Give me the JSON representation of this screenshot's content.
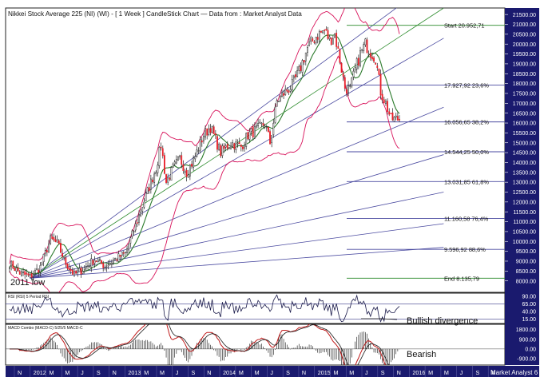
{
  "title": "Nikkei Stock Average 225 (NI) (WI) -  [ 1 Week ] CandleStick Chart — Data from : Market Analyst Data",
  "footer_brand": "Market Analyst 6",
  "colors": {
    "price_bg": "#ffffff",
    "indicator_bg": "#ffffff",
    "frame": "#222222",
    "right_axis_bg": "#1a1a6e",
    "right_axis_text": "#ffffff",
    "bottom_axis_bg": "#1a1a6e",
    "bottom_axis_text": "#ffffff",
    "candle_up": "#ffffff",
    "candle_down": "#e8202a",
    "candle_wick": "#222222",
    "bollinger": "#d8125a",
    "moving_average": "#2a7a2a",
    "fan_lines": "#4a4aa0",
    "start_line": "#2a8a2a",
    "fib_levels": "#4a4aa0",
    "rsi_line": "#1a1a4a",
    "macd_line": "#c01a1a",
    "macd_signal": "#1a1a1a"
  },
  "chart_data": {
    "type": "candlestick",
    "title": "Nikkei Stock Average 225 (NI) (WI) -  [ 1 Week ] CandleStick Chart — Data from : Market Analyst Data",
    "y_ticks": [
      8000,
      8500,
      9000,
      9500,
      10000,
      10500,
      11000,
      11500,
      12000,
      12500,
      13000,
      13500,
      14000,
      14500,
      15000,
      15500,
      16000,
      16500,
      17000,
      17500,
      18000,
      18500,
      19000,
      19500,
      20000,
      20500,
      21000,
      21500
    ],
    "y_tick_labels": [
      "8000.00",
      "8500.00",
      "9000.00",
      "9500.00",
      "10000.00",
      "10500.00",
      "11000.00",
      "11500.00",
      "12000.00",
      "12500.00",
      "13000.00",
      "13500.00",
      "14000.00",
      "14500.00",
      "15000.00",
      "15500.00",
      "16000.00",
      "16500.00",
      "17000.00",
      "17500.00",
      "18000.00",
      "18500.00",
      "19000.00",
      "19500.00",
      "20000.00",
      "20500.00",
      "21000.00",
      "21500.00"
    ],
    "ylim": [
      7420,
      21830
    ],
    "x_ticks": [
      "N",
      "2012",
      "M",
      "M",
      "J",
      "S",
      "N",
      "2013",
      "M",
      "M",
      "J",
      "S",
      "N",
      "2014",
      "M",
      "M",
      "J",
      "S",
      "N",
      "2015",
      "M",
      "M",
      "J",
      "S",
      "N",
      "2016",
      "M",
      "M",
      "J",
      "S",
      "N"
    ],
    "fib_levels": [
      {
        "label": "Start 20.952,71",
        "value": 20952.71,
        "kind": "start"
      },
      {
        "label": "17.927,92 23,6%",
        "value": 17927.92
      },
      {
        "label": "16.056,65 38,2%",
        "value": 16056.65
      },
      {
        "label": "14.544,25 50,0%",
        "value": 14544.25
      },
      {
        "label": "13.031,85 61,8%",
        "value": 13031.85
      },
      {
        "label": "11.160,58 76,4%",
        "value": 11160.58
      },
      {
        "label": "9.596,92 88,6%",
        "value": 9596.92
      },
      {
        "label": "End 8.135,79",
        "value": 8135.79,
        "kind": "end"
      }
    ],
    "annotations": {
      "low_label": "2011 low",
      "rsi_note": "Bullish divergence",
      "macd_note": "Bearish"
    },
    "rsi": {
      "label": "RSI (RSI) 5 Period RSI",
      "ticks": [
        15,
        40,
        65,
        90
      ],
      "tick_labels": [
        "15.00",
        "40.00",
        "65.00",
        "90.00"
      ],
      "ylim": [
        0,
        100
      ],
      "reference_lines": [
        65,
        15
      ]
    },
    "macd": {
      "label": "MACD Combo (MACD-C) 5/25/5 MACD-C",
      "ticks": [
        -900,
        0,
        900,
        1800
      ],
      "tick_labels": [
        "-900.00",
        "0.00",
        "900.00",
        "1800.00"
      ],
      "ylim": [
        -1500,
        2300
      ]
    }
  }
}
